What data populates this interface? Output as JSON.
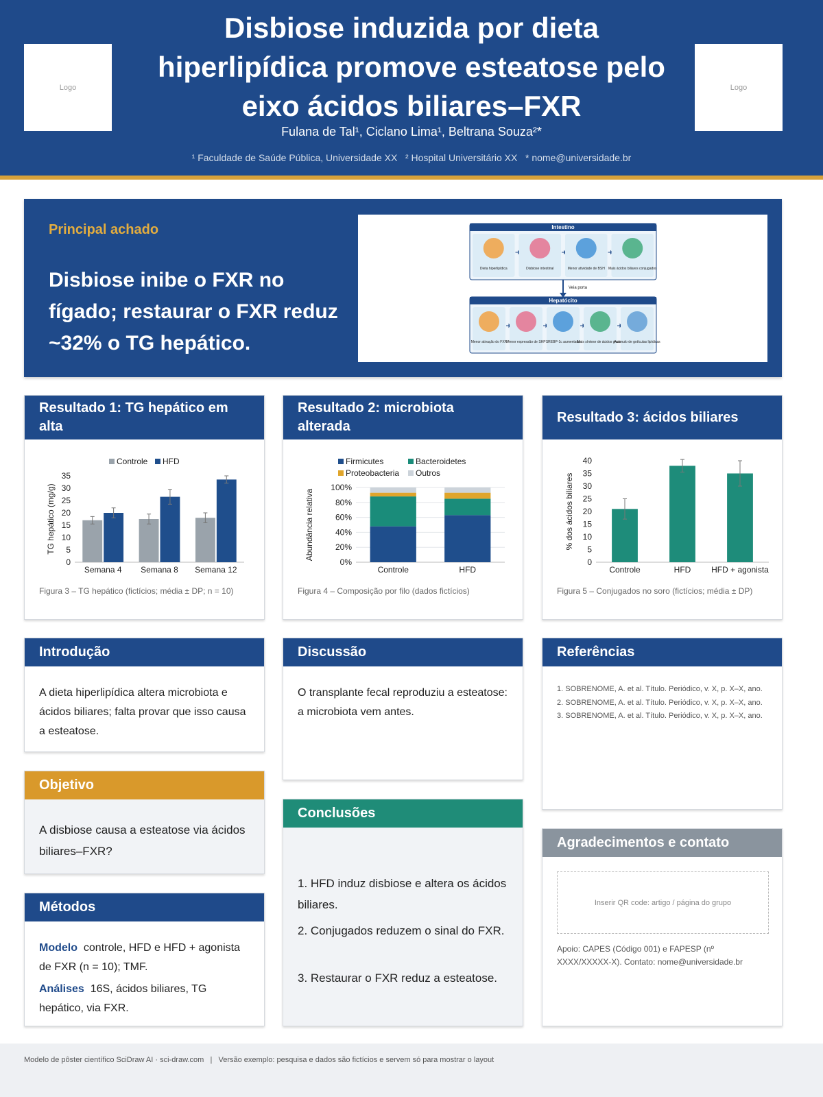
{
  "header": {
    "title": "Disbiose induzida por dieta hiperlipídica promove esteatose pelo eixo ácidos biliares–FXR",
    "authors": "Fulana de Tal¹, Ciclano Lima¹, Beltrana Souza²*",
    "affiliations": "¹ Faculdade de Saúde Pública, Universidade XX   ² Hospital Universitário XX   * nome@universidade.br",
    "logo_left": "Logo",
    "logo_right": "Logo"
  },
  "key_finding": {
    "label": "Principal achado",
    "text": "Disbiose inibe o FXR no fígado; restaurar o FXR reduz ~32% o TG hepático."
  },
  "diagram": {
    "intestine": {
      "title": "Intestino",
      "steps": [
        "Dieta hiperlipídica",
        "Disbiose intestinal",
        "Menor atividade de BSH",
        "Mais ácidos biliares conjugados"
      ]
    },
    "link": "Veia porta",
    "hepatocyte": {
      "title": "Hepatócito",
      "steps": [
        "Menor ativação do FXR",
        "Menor expressão de SHP",
        "SREBP-1c aumentado",
        "Mais síntese de ácidos graxos",
        "Acúmulo de gotículas lipídicas"
      ]
    }
  },
  "results": [
    {
      "title": "Resultado 1: TG hepático em alta",
      "caption": "Figura 3 – TG hepático (fictícios; média ± DP; n = 10)"
    },
    {
      "title": "Resultado 2: microbiota alterada",
      "caption": "Figura 4 – Composição por filo (dados fictícios)"
    },
    {
      "title": "Resultado 3: ácidos biliares",
      "caption": "Figura 5 – Conjugados no soro (fictícios; média ± DP)"
    }
  ],
  "chart_data": [
    {
      "type": "bar",
      "y_label": "TG hepático (mg/g)",
      "categories": [
        "Semana 4",
        "Semana 8",
        "Semana 12"
      ],
      "series": [
        {
          "name": "Controle",
          "color": "#9aa3ab",
          "values": [
            17,
            17.5,
            18
          ],
          "errors": [
            1.5,
            2,
            2
          ]
        },
        {
          "name": "HFD",
          "color": "#1f4e8c",
          "values": [
            20,
            26.5,
            33.5
          ],
          "errors": [
            2,
            3,
            1.5
          ]
        }
      ],
      "ylim": [
        0,
        35
      ],
      "yticks": [
        0,
        5,
        10,
        15,
        20,
        25,
        30,
        35
      ],
      "legend": "top",
      "grid": false
    },
    {
      "type": "bar",
      "stacked": true,
      "y_label": "Abundância relativa",
      "categories": [
        "Controle",
        "HFD"
      ],
      "series": [
        {
          "name": "Firmicutes",
          "color": "#1f4e8c",
          "values": [
            48,
            63
          ]
        },
        {
          "name": "Bacteroidetes",
          "color": "#1a8c7a",
          "values": [
            40,
            22
          ]
        },
        {
          "name": "Proteobacteria",
          "color": "#e0a52b",
          "values": [
            5,
            8
          ]
        },
        {
          "name": "Outros",
          "color": "#ccd3da",
          "values": [
            7,
            7
          ]
        }
      ],
      "ylim": [
        0,
        100
      ],
      "yticks": [
        {
          "value": 0,
          "label": "0%"
        },
        {
          "value": 20,
          "label": "20%"
        },
        {
          "value": 40,
          "label": "40%"
        },
        {
          "value": 60,
          "label": "60%"
        },
        {
          "value": 80,
          "label": "80%"
        },
        {
          "value": 100,
          "label": "100%"
        }
      ],
      "legend": "top",
      "grid": true
    },
    {
      "type": "bar",
      "y_label": "% dos ácidos biliares",
      "categories": [
        "Controle",
        "HFD",
        "HFD + agonista"
      ],
      "values": [
        21,
        38,
        35
      ],
      "errors": [
        4,
        2.5,
        5
      ],
      "color": "#1e8c7a",
      "ylim": [
        0,
        40
      ],
      "yticks": [
        0,
        5,
        10,
        15,
        20,
        25,
        30,
        35,
        40
      ],
      "grid": false
    }
  ],
  "introduction": {
    "title": "Introdução",
    "text": "A dieta hiperlipídica altera microbiota e ácidos biliares; falta provar que isso causa a esteatose."
  },
  "objective": {
    "title": "Objetivo",
    "text": "A disbiose causa a esteatose via ácidos biliares–FXR?"
  },
  "methods": {
    "title": "Métodos",
    "items": [
      {
        "label": "Modelo",
        "text": "controle, HFD e HFD + agonista de FXR (n = 10); TMF."
      },
      {
        "label": "Análises",
        "text": "16S, ácidos biliares, TG hepático, via FXR."
      }
    ]
  },
  "discussion": {
    "title": "Discussão",
    "text": "O transplante fecal reproduziu a esteatose: a microbiota vem antes."
  },
  "conclusions": {
    "title": "Conclusões",
    "items": [
      "1. HFD induz disbiose e altera os ácidos biliares.",
      "2. Conjugados reduzem o sinal do FXR.",
      "3. Restaurar o FXR reduz a esteatose."
    ]
  },
  "references": {
    "title": "Referências",
    "items": [
      "1. SOBRENOME, A. et al. Título. Periódico, v. X, p. X–X, ano.",
      "2. SOBRENOME, A. et al. Título. Periódico, v. X, p. X–X, ano.",
      "3. SOBRENOME, A. et al. Título. Periódico, v. X, p. X–X, ano."
    ]
  },
  "acknowledgements": {
    "title": "Agradecimentos e contato",
    "qr": "Inserir QR code: artigo / página do grupo",
    "text": "Apoio: CAPES (Código 001) e FAPESP (nº XXXX/XXXXX-X). Contato: nome@universidade.br"
  },
  "footer": {
    "left": "Modelo de pôster científico SciDraw AI · sci-draw.com",
    "separator": "|",
    "right": "Versão exemplo: pesquisa e dados são fictícios e servem só para mostrar o layout"
  }
}
